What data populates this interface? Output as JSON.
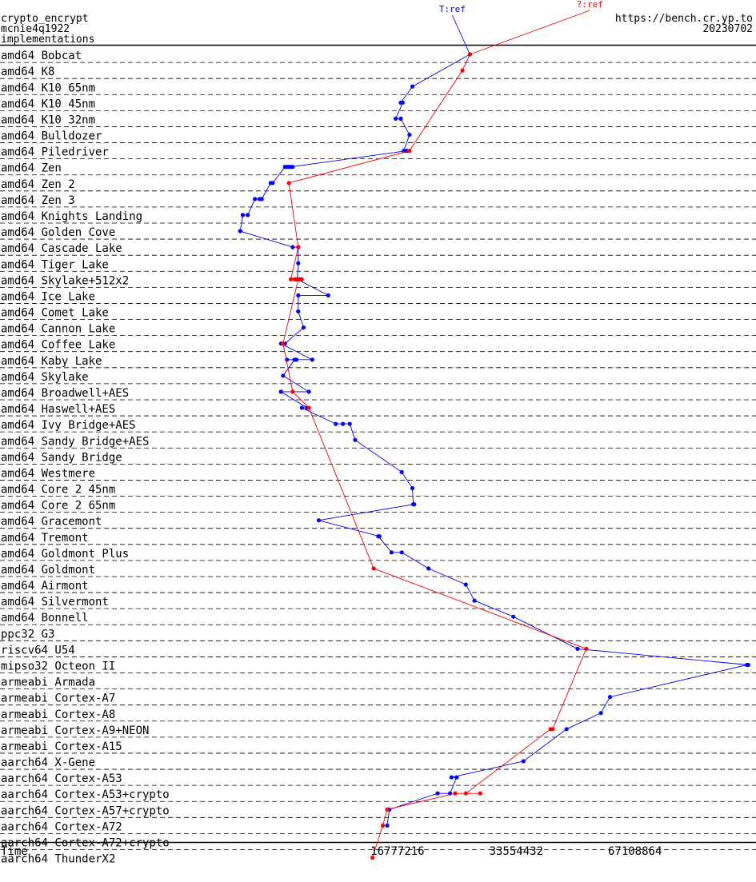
{
  "header": {
    "left_lines": [
      "crypto_encrypt",
      "mcnie4q1922",
      "implementations"
    ],
    "right_lines": [
      "https://bench.cr.yp.to",
      "20230702"
    ]
  },
  "chart_data": {
    "type": "line",
    "title": "",
    "xlabel": "Time",
    "x_scale": "log2",
    "xlim": [
      4194304,
      136000000
    ],
    "x_ticks": [
      {
        "value": 16777216,
        "label": "16777216"
      },
      {
        "value": 33554432,
        "label": "33554432"
      },
      {
        "value": 67108864,
        "label": "67108864"
      }
    ],
    "categories": [
      "amd64 Bobcat",
      "amd64 K8",
      "amd64 K10 65nm",
      "amd64 K10 45nm",
      "amd64 K10 32nm",
      "amd64 Bulldozer",
      "amd64 Piledriver",
      "amd64 Zen",
      "amd64 Zen 2",
      "amd64 Zen 3",
      "amd64 Knights Landing",
      "amd64 Golden Cove",
      "amd64 Cascade Lake",
      "amd64 Tiger Lake",
      "amd64 Skylake+512x2",
      "amd64 Ice Lake",
      "amd64 Comet Lake",
      "amd64 Cannon Lake",
      "amd64 Coffee Lake",
      "amd64 Kaby Lake",
      "amd64 Skylake",
      "amd64 Broadwell+AES",
      "amd64 Haswell+AES",
      "amd64 Ivy Bridge+AES",
      "amd64 Sandy Bridge+AES",
      "amd64 Sandy Bridge",
      "amd64 Westmere",
      "amd64 Core 2 45nm",
      "amd64 Core 2 65nm",
      "amd64 Gracemont",
      "amd64 Tremont",
      "amd64 Goldmont Plus",
      "amd64 Goldmont",
      "amd64 Airmont",
      "amd64 Silvermont",
      "amd64 Bonnell",
      "ppc32 G3",
      "riscv64 U54",
      "mipso32 Octeon II",
      "armeabi Armada",
      "armeabi Cortex-A7",
      "armeabi Cortex-A8",
      "armeabi Cortex-A9+NEON",
      "armeabi Cortex-A15",
      "aarch64 X-Gene",
      "aarch64 Cortex-A53",
      "aarch64 Cortex-A53+crypto",
      "aarch64 Cortex-A57+crypto",
      "aarch64 Cortex-A72",
      "aarch64 Cortex-A72+crypto",
      "aarch64 ThunderX2"
    ],
    "series": [
      {
        "name": "T:ref",
        "color": "#0000ff",
        "points": [
          {
            "row": 0,
            "x": 25600000
          },
          {
            "row": 2,
            "x": 18300000
          },
          {
            "row": 3,
            "x": 17100000
          },
          {
            "row": 3,
            "x": 17300000
          },
          {
            "row": 4,
            "x": 16600000
          },
          {
            "row": 4,
            "x": 17100000
          },
          {
            "row": 5,
            "x": 18000000
          },
          {
            "row": 6,
            "x": 17400000
          },
          {
            "row": 6,
            "x": 17700000
          },
          {
            "row": 7,
            "x": 9000000
          },
          {
            "row": 7,
            "x": 9100000
          },
          {
            "row": 7,
            "x": 8900000
          },
          {
            "row": 7,
            "x": 8800000
          },
          {
            "row": 7,
            "x": 8700000
          },
          {
            "row": 8,
            "x": 8100000
          },
          {
            "row": 8,
            "x": 8000000
          },
          {
            "row": 9,
            "x": 7600000
          },
          {
            "row": 9,
            "x": 7500000
          },
          {
            "row": 9,
            "x": 7300000
          },
          {
            "row": 10,
            "x": 7000000
          },
          {
            "row": 10,
            "x": 6800000
          },
          {
            "row": 11,
            "x": 6700000
          },
          {
            "row": 11,
            "x": 6700000
          },
          {
            "row": 12,
            "x": 9100000
          },
          {
            "row": 12,
            "x": 9400000
          },
          {
            "row": 13,
            "x": 9400000
          },
          {
            "row": 14,
            "x": 9350000
          },
          {
            "row": 14,
            "x": 9450000
          },
          {
            "row": 14,
            "x": 9250000
          },
          {
            "row": 14,
            "x": 9550000
          },
          {
            "row": 14,
            "x": 9350000
          },
          {
            "row": 15,
            "x": 11200000
          },
          {
            "row": 15,
            "x": 9400000
          },
          {
            "row": 16,
            "x": 9400000
          },
          {
            "row": 17,
            "x": 9700000
          },
          {
            "row": 18,
            "x": 8700000
          },
          {
            "row": 18,
            "x": 8500000
          },
          {
            "row": 19,
            "x": 10200000
          },
          {
            "row": 19,
            "x": 8800000
          },
          {
            "row": 19,
            "x": 9300000
          },
          {
            "row": 19,
            "x": 9200000
          },
          {
            "row": 20,
            "x": 8600000
          },
          {
            "row": 21,
            "x": 10000000
          },
          {
            "row": 21,
            "x": 8500000
          },
          {
            "row": 22,
            "x": 9900000
          },
          {
            "row": 22,
            "x": 9600000
          },
          {
            "row": 23,
            "x": 11700000
          },
          {
            "row": 23,
            "x": 12200000
          },
          {
            "row": 23,
            "x": 12700000
          },
          {
            "row": 24,
            "x": 13100000
          },
          {
            "row": 26,
            "x": 17200000
          },
          {
            "row": 27,
            "x": 18300000
          },
          {
            "row": 28,
            "x": 18400000
          },
          {
            "row": 28,
            "x": 18500000
          },
          {
            "row": 29,
            "x": 10600000
          },
          {
            "row": 30,
            "x": 15100000
          },
          {
            "row": 30,
            "x": 15000000
          },
          {
            "row": 31,
            "x": 16200000
          },
          {
            "row": 31,
            "x": 17200000
          },
          {
            "row": 32,
            "x": 20100000
          },
          {
            "row": 33,
            "x": 25000000
          },
          {
            "row": 34,
            "x": 26300000
          },
          {
            "row": 35,
            "x": 33000000
          },
          {
            "row": 37,
            "x": 48000000
          },
          {
            "row": 38,
            "x": 130000000
          },
          {
            "row": 38,
            "x": 129000000
          },
          {
            "row": 40,
            "x": 58000000
          },
          {
            "row": 41,
            "x": 55000000
          },
          {
            "row": 42,
            "x": 45000000
          },
          {
            "row": 44,
            "x": 35000000
          },
          {
            "row": 45,
            "x": 23000000
          },
          {
            "row": 45,
            "x": 23700000
          },
          {
            "row": 46,
            "x": 22800000
          },
          {
            "row": 46,
            "x": 21200000
          },
          {
            "row": 47,
            "x": 16000000
          },
          {
            "row": 48,
            "x": 15800000
          }
        ]
      },
      {
        "name": "?:ref",
        "color": "#ff0000",
        "points": [
          {
            "row": 0,
            "x": 25600000
          },
          {
            "row": 1,
            "x": 24500000
          },
          {
            "row": 6,
            "x": 18000000
          },
          {
            "row": 8,
            "x": 8900000
          },
          {
            "row": 12,
            "x": 9400000
          },
          {
            "row": 14,
            "x": 9000000
          },
          {
            "row": 14,
            "x": 9300000
          },
          {
            "row": 14,
            "x": 9600000
          },
          {
            "row": 14,
            "x": 9200000
          },
          {
            "row": 14,
            "x": 9400000
          },
          {
            "row": 18,
            "x": 8600000
          },
          {
            "row": 21,
            "x": 9100000
          },
          {
            "row": 22,
            "x": 10000000
          },
          {
            "row": 32,
            "x": 14600000
          },
          {
            "row": 37,
            "x": 50500000
          },
          {
            "row": 42,
            "x": 41500000
          },
          {
            "row": 42,
            "x": 41000000
          },
          {
            "row": 46,
            "x": 25000000
          },
          {
            "row": 46,
            "x": 27200000
          },
          {
            "row": 46,
            "x": 23500000
          },
          {
            "row": 47,
            "x": 15800000
          },
          {
            "row": 48,
            "x": 15400000
          },
          {
            "row": 50,
            "x": 14500000
          }
        ]
      }
    ]
  }
}
